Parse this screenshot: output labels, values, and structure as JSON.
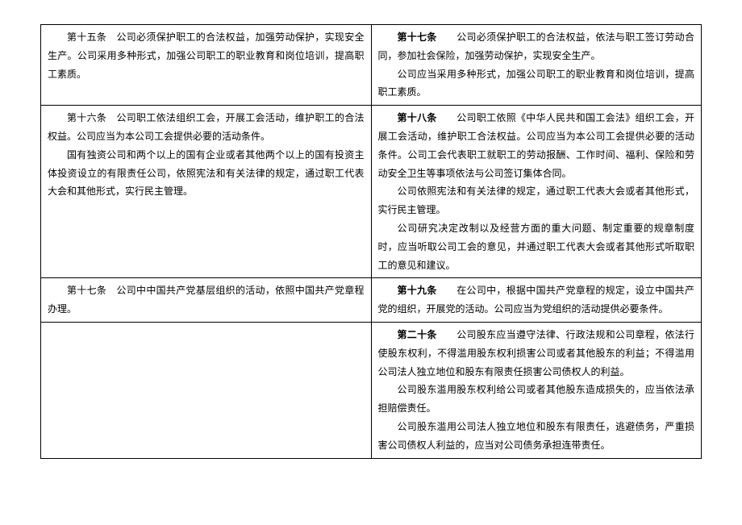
{
  "rows": [
    {
      "left": [
        {
          "text": "第十五条　公司必须保护职工的合法权益，加强劳动保护，实现安全生产。公司采用多种形式，加强公司职工的职业教育和岗位培训，提高职工素质。"
        }
      ],
      "right": [
        {
          "bold": "第十七条",
          "text": "　　公司必须保护职工的合法权益，依法与职工签订劳动合同，参加社会保险，加强劳动保护，实现安全生产。"
        },
        {
          "text": "公司应当采用多种形式，加强公司职工的职业教育和岗位培训，提高职工素质。"
        }
      ]
    },
    {
      "left": [
        {
          "text": "第十六条　公司职工依法组织工会，开展工会活动，维护职工的合法权益。公司应当为本公司工会提供必要的活动条件。"
        },
        {
          "text": "国有独资公司和两个以上的国有企业或者其他两个以上的国有投资主体投资设立的有限责任公司，依照宪法和有关法律的规定，通过职工代表大会和其他形式，实行民主管理。"
        }
      ],
      "right": [
        {
          "bold": "第十八条",
          "text": "　　公司职工依照《中华人民共和国工会法》组织工会，开展工会活动，维护职工合法权益。公司应当为本公司工会提供必要的活动条件。公司工会代表职工就职工的劳动报酬、工作时间、福利、保险和劳动安全卫生等事项依法与公司签订集体合同。"
        },
        {
          "text": "公司依照宪法和有关法律的规定，通过职工代表大会或者其他形式，实行民主管理。"
        },
        {
          "text": "公司研究决定改制以及经营方面的重大问题、制定重要的规章制度时，应当听取公司工会的意见，并通过职工代表大会或者其他形式听取职工的意见和建议。"
        }
      ]
    },
    {
      "left": [
        {
          "text": "第十七条　公司中中国共产党基层组织的活动，依照中国共产党章程办理。"
        }
      ],
      "right": [
        {
          "bold": "第十九条",
          "text": "　　在公司中，根据中国共产党章程的规定，设立中国共产党的组织，开展党的活动。公司应当为党组织的活动提供必要条件。"
        }
      ]
    },
    {
      "left": [],
      "right": [
        {
          "bold": "第二十条",
          "text": "　　公司股东应当遵守法律、行政法规和公司章程，依法行使股东权利，不得滥用股东权利损害公司或者其他股东的利益；不得滥用公司法人独立地位和股东有限责任损害公司债权人的利益。"
        },
        {
          "text": "公司股东滥用股东权利给公司或者其他股东造成损失的，应当依法承担赔偿责任。"
        },
        {
          "text": "公司股东滥用公司法人独立地位和股东有限责任，逃避债务，严重损害公司债权人利益的，应当对公司债务承担连带责任。"
        }
      ]
    }
  ]
}
